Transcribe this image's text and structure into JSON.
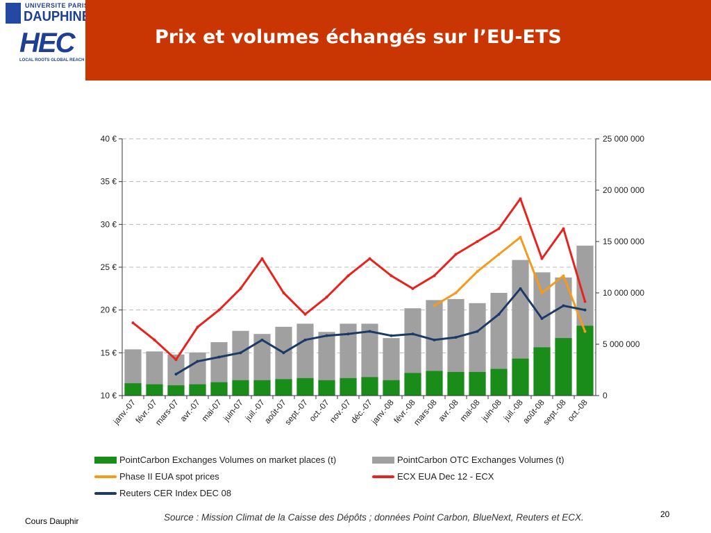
{
  "slide": {
    "title": "Prix et volumes échangés sur l’EU-ETS",
    "page_number": "20",
    "footer": "Cours Dauphir",
    "source": "Source : Mission Climat de la Caisse des Dépôts ; données Point Carbon, BlueNext, Reuters et ECX."
  },
  "logos": {
    "univ_line": "UNIVERSITE PARIS",
    "dauphine": "DAUPHINE",
    "hec": "HEC",
    "hec_tagline": "LOCAL ROOTS GLOBAL REACH"
  },
  "colors": {
    "header": "#c93603",
    "exchange_volumes": "#1a8c1a",
    "otc_volumes": "#a0a0a0",
    "phase2_spot": "#f59a1c",
    "ecx_dec12": "#e8221c",
    "cer_dec08": "#1c3a66"
  },
  "chart_data": {
    "type": "bar",
    "x": [
      "janv.-07",
      "févr.-07",
      "mars-07",
      "avr.-07",
      "mai-07",
      "juin-07",
      "juil.-07",
      "août-07",
      "sept.-07",
      "oct.-07",
      "nov.-07",
      "déc.-07",
      "janv.-08",
      "févr.-08",
      "mars-08",
      "avr.-08",
      "mai-08",
      "juin-08",
      "juil.-08",
      "août-08",
      "sept.-08",
      "oct.-08"
    ],
    "ylim": [
      10,
      40
    ],
    "y_ticks": [
      "10 €",
      "15 €",
      "20 €",
      "25 €",
      "30 €",
      "35 €",
      "40 €"
    ],
    "y2lim": [
      0,
      25000000
    ],
    "y2_ticks": [
      "0",
      "5 000 000",
      "10 000 000",
      "15 000 000",
      "20 000 000",
      "25 000 000"
    ],
    "grid": true,
    "bar_series": [
      {
        "name": "PointCarbon Exchanges Volumes on market places (t)",
        "color": "#1a8c1a",
        "axis": "right",
        "values": [
          1200000,
          1100000,
          1000000,
          1100000,
          1300000,
          1500000,
          1500000,
          1600000,
          1700000,
          1500000,
          1700000,
          1800000,
          1500000,
          2200000,
          2400000,
          2300000,
          2300000,
          2600000,
          3600000,
          4700000,
          5600000,
          6800000
        ]
      },
      {
        "name": "PointCarbon OTC Exchanges Volumes (t)",
        "color": "#a0a0a0",
        "axis": "right",
        "values": [
          4500000,
          4300000,
          4000000,
          4200000,
          5200000,
          6300000,
          6000000,
          6700000,
          7000000,
          6200000,
          7000000,
          7000000,
          5600000,
          8500000,
          9300000,
          9400000,
          9000000,
          10000000,
          13200000,
          12000000,
          11500000,
          14600000
        ]
      }
    ],
    "line_series": [
      {
        "name": "ECX EUA Dec 12 - ECX",
        "color": "#e8221c",
        "axis": "left",
        "x": [
          "janv.-07",
          "févr.-07",
          "mars-07",
          "avr.-07",
          "mai-07",
          "juin-07",
          "juil.-07",
          "août-07",
          "sept.-07",
          "oct.-07",
          "nov.-07",
          "déc.-07",
          "janv.-08",
          "févr.-08",
          "mars-08",
          "avr.-08",
          "mai-08",
          "juin-08",
          "juil.-08",
          "août-08",
          "sept.-08",
          "oct.-08"
        ],
        "values": [
          18.5,
          16.5,
          14.2,
          18,
          20,
          22.5,
          26,
          22,
          19.5,
          21.5,
          24,
          26,
          24,
          22.5,
          24,
          26.5,
          28,
          29.5,
          33,
          26,
          29.5,
          21
        ]
      },
      {
        "name": "Phase II EUA spot prices",
        "color": "#f59a1c",
        "axis": "left",
        "x": [
          "mars-08",
          "avr.-08",
          "mai-08",
          "juin-08",
          "juil.-08",
          "août-08",
          "sept.-08",
          "oct.-08"
        ],
        "values": [
          20.5,
          22,
          24.5,
          26.5,
          28.5,
          22,
          24,
          17.5
        ]
      },
      {
        "name": "Reuters CER Index DEC 08",
        "color": "#1c3a66",
        "axis": "left",
        "x": [
          "mars-07",
          "avr.-07",
          "mai-07",
          "juin-07",
          "juil.-07",
          "août-07",
          "sept.-07",
          "oct.-07",
          "nov.-07",
          "déc.-07",
          "janv.-08",
          "févr.-08",
          "mars-08",
          "avr.-08",
          "mai-08",
          "juin-08",
          "juil.-08",
          "août-08",
          "sept.-08",
          "oct.-08"
        ],
        "values": [
          12.5,
          14,
          14.5,
          15,
          16.5,
          15,
          16.5,
          17,
          17.2,
          17.5,
          17,
          17.2,
          16.5,
          16.8,
          17.5,
          19.5,
          22.5,
          19,
          20.5,
          20
        ]
      }
    ]
  },
  "legend": [
    {
      "label": "PointCarbon Exchanges Volumes on market places (t)",
      "kind": "box",
      "color": "#1a8c1a"
    },
    {
      "label": "PointCarbon OTC Exchanges Volumes (t)",
      "kind": "box",
      "color": "#a0a0a0"
    },
    {
      "label": "Phase II EUA spot prices",
      "kind": "line",
      "color": "#f59a1c"
    },
    {
      "label": "ECX EUA Dec 12 - ECX",
      "kind": "line",
      "color": "#e8221c"
    },
    {
      "label": "Reuters CER Index DEC 08",
      "kind": "line",
      "color": "#1c3a66"
    }
  ]
}
